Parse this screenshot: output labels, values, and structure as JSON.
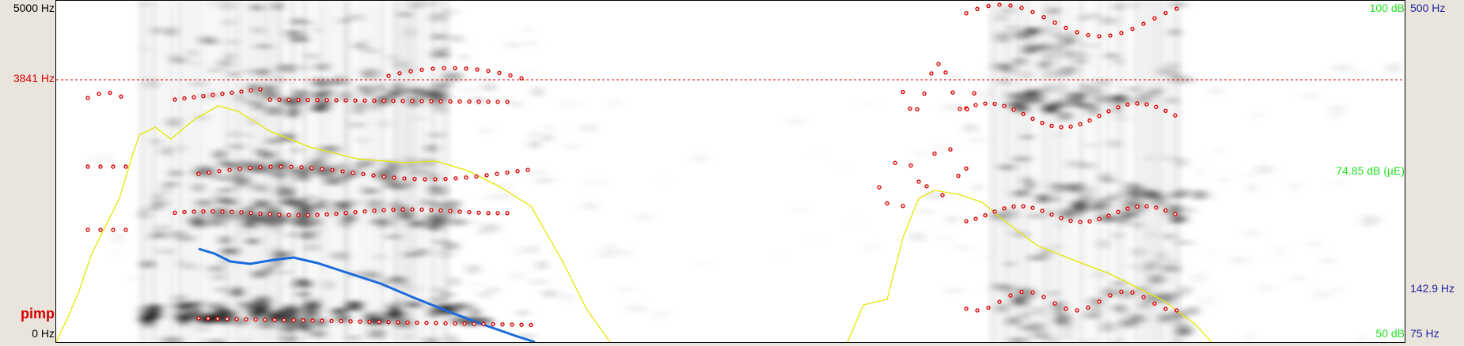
{
  "frequency_axis": {
    "top_label": "5000 Hz",
    "bottom_label": "0 Hz",
    "cursor_label": "3841 Hz"
  },
  "tier": {
    "word": "pimp"
  },
  "intensity_axis": {
    "top_label": "100 dB",
    "mid_label": "74.85 dB (µE)",
    "bottom_label": "50 dB"
  },
  "pitch_axis": {
    "top_label": "500 Hz",
    "mid_label": "142.9 Hz",
    "bottom_label": "75 Hz"
  },
  "colors": {
    "formant": "#e00000",
    "intensity": "#e6e600",
    "pitch": "#1a6bdc",
    "cursor": "#e00000",
    "spectrogram": "#000000"
  }
}
